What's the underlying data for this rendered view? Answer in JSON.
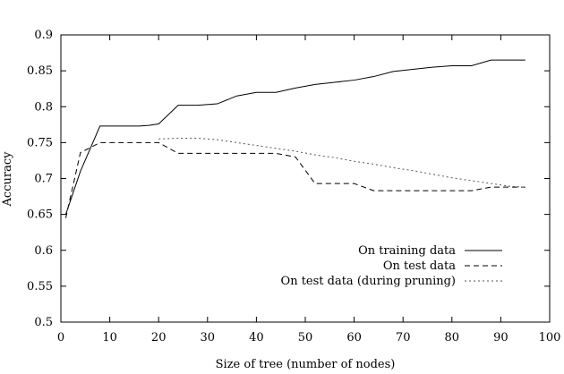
{
  "chart_data": {
    "type": "line",
    "title": "",
    "xlabel": "Size of tree (number of nodes)",
    "ylabel": "Accuracy",
    "xlim": [
      0,
      100
    ],
    "ylim": [
      0.5,
      0.9
    ],
    "xticks": [
      "0",
      "10",
      "20",
      "30",
      "40",
      "50",
      "60",
      "70",
      "80",
      "90",
      "100"
    ],
    "yticks": [
      "0.5",
      "0.55",
      "0.6",
      "0.65",
      "0.7",
      "0.75",
      "0.8",
      "0.85",
      "0.9"
    ],
    "grid": false,
    "legend_position": "bottom-right",
    "series": [
      {
        "name": "On training data",
        "style": "solid",
        "color": "#000000",
        "points": [
          [
            1,
            0.65
          ],
          [
            4,
            0.71
          ],
          [
            8,
            0.773
          ],
          [
            12,
            0.773
          ],
          [
            16,
            0.773
          ],
          [
            18,
            0.774
          ],
          [
            20,
            0.776
          ],
          [
            24,
            0.802
          ],
          [
            28,
            0.802
          ],
          [
            32,
            0.804
          ],
          [
            36,
            0.815
          ],
          [
            40,
            0.82
          ],
          [
            44,
            0.82
          ],
          [
            48,
            0.826
          ],
          [
            52,
            0.831
          ],
          [
            56,
            0.834
          ],
          [
            60,
            0.837
          ],
          [
            64,
            0.842
          ],
          [
            68,
            0.849
          ],
          [
            72,
            0.852
          ],
          [
            76,
            0.855
          ],
          [
            80,
            0.857
          ],
          [
            84,
            0.857
          ],
          [
            88,
            0.865
          ],
          [
            92,
            0.865
          ],
          [
            95,
            0.865
          ]
        ]
      },
      {
        "name": "On test data",
        "style": "dashed",
        "color": "#000000",
        "points": [
          [
            1,
            0.645
          ],
          [
            4,
            0.736
          ],
          [
            8,
            0.75
          ],
          [
            12,
            0.75
          ],
          [
            16,
            0.75
          ],
          [
            20,
            0.75
          ],
          [
            24,
            0.735
          ],
          [
            28,
            0.735
          ],
          [
            32,
            0.735
          ],
          [
            36,
            0.735
          ],
          [
            40,
            0.735
          ],
          [
            44,
            0.735
          ],
          [
            48,
            0.73
          ],
          [
            52,
            0.693
          ],
          [
            56,
            0.693
          ],
          [
            60,
            0.693
          ],
          [
            64,
            0.683
          ],
          [
            68,
            0.683
          ],
          [
            72,
            0.683
          ],
          [
            76,
            0.683
          ],
          [
            80,
            0.683
          ],
          [
            84,
            0.683
          ],
          [
            88,
            0.688
          ],
          [
            92,
            0.688
          ],
          [
            95,
            0.688
          ]
        ]
      },
      {
        "name": "On test data (during pruning)",
        "style": "dotted",
        "color": "#000000",
        "points": [
          [
            20,
            0.755
          ],
          [
            24,
            0.756
          ],
          [
            28,
            0.756
          ],
          [
            32,
            0.754
          ],
          [
            36,
            0.75
          ],
          [
            40,
            0.746
          ],
          [
            44,
            0.742
          ],
          [
            48,
            0.738
          ],
          [
            52,
            0.733
          ],
          [
            56,
            0.729
          ],
          [
            60,
            0.724
          ],
          [
            64,
            0.72
          ],
          [
            68,
            0.715
          ],
          [
            72,
            0.711
          ],
          [
            76,
            0.706
          ],
          [
            80,
            0.701
          ],
          [
            84,
            0.697
          ],
          [
            88,
            0.693
          ],
          [
            92,
            0.689
          ],
          [
            95,
            0.688
          ]
        ]
      }
    ]
  }
}
